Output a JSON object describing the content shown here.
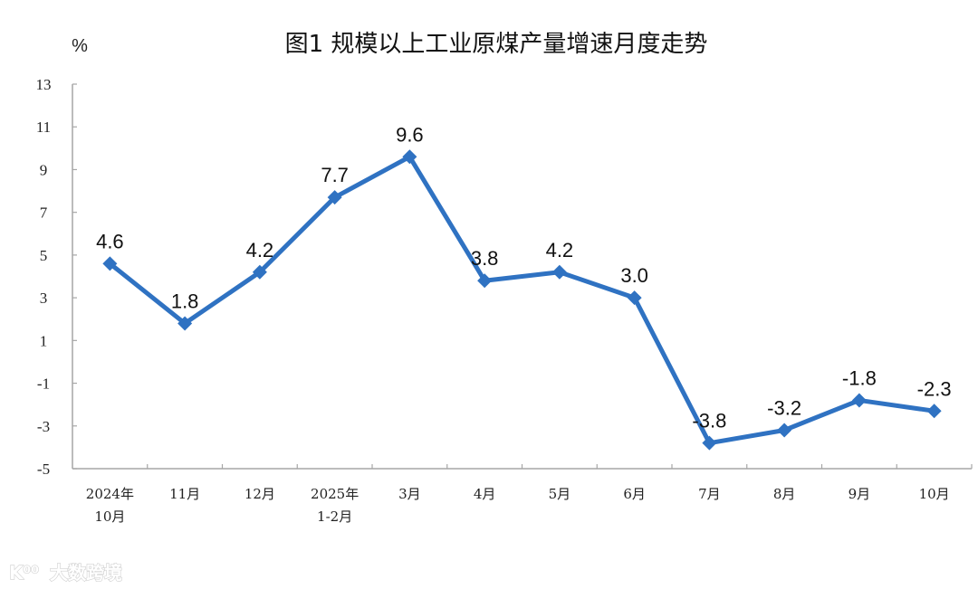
{
  "header": {
    "title": "图1  规模以上工业原煤产量增速月度走势",
    "unit": "%"
  },
  "watermark": {
    "logo": "K⁰⁰",
    "text": "大数跨境"
  },
  "colors": {
    "line": "#2f72c2",
    "axis": "#a6a6a6",
    "text": "#111111"
  },
  "chart_data": {
    "type": "line",
    "title": "图1  规模以上工业原煤产量增速月度走势",
    "xlabel": "",
    "ylabel": "%",
    "ylim": [
      -5,
      13
    ],
    "yticks": [
      13,
      11,
      9,
      7,
      5,
      3,
      1,
      -1,
      -3,
      -5
    ],
    "grid": false,
    "legend": null,
    "categories": [
      [
        "2024年",
        "10月"
      ],
      [
        "11月"
      ],
      [
        "12月"
      ],
      [
        "2025年",
        "1-2月"
      ],
      [
        "3月"
      ],
      [
        "4月"
      ],
      [
        "5月"
      ],
      [
        "6月"
      ],
      [
        "7月"
      ],
      [
        "8月"
      ],
      [
        "9月"
      ],
      [
        "10月"
      ]
    ],
    "series": [
      {
        "name": "规模以上工业原煤产量增速",
        "values": [
          4.6,
          1.8,
          4.2,
          7.7,
          9.6,
          3.8,
          4.2,
          3.0,
          -3.8,
          -3.2,
          -1.8,
          -2.3
        ],
        "labels": [
          "4.6",
          "1.8",
          "4.2",
          "7.7",
          "9.6",
          "3.8",
          "4.2",
          "3.0",
          "-3.8",
          "-3.2",
          "-1.8",
          "-2.3"
        ],
        "marker": "diamond"
      }
    ]
  }
}
